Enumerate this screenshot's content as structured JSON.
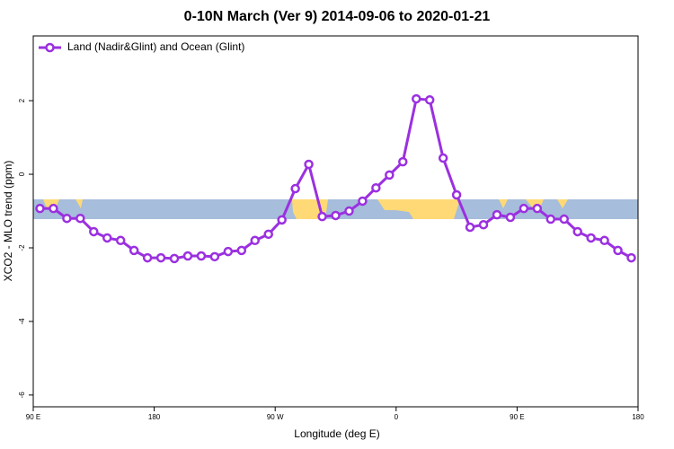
{
  "chart_data": {
    "type": "line",
    "title": "0-10N March (Ver 9)   2014-09-06 to 2020-01-21",
    "x_label": "Longitude (deg E)",
    "y_label": "XCO2 - MLO trend (ppm)",
    "xlim": [
      90,
      540
    ],
    "ylim": [
      -6.32,
      3.76
    ],
    "xticks": [
      {
        "value": 90,
        "label": "90 E"
      },
      {
        "value": 180,
        "label": "180"
      },
      {
        "value": 270,
        "label": "90 W"
      },
      {
        "value": 360,
        "label": "0"
      },
      {
        "value": 450,
        "label": "90 E"
      },
      {
        "value": 540,
        "label": "180"
      }
    ],
    "yticks": [
      2,
      0,
      -2,
      -4,
      -6
    ],
    "legend": "top-left",
    "x": [
      95,
      105,
      115,
      125,
      135,
      145,
      155,
      165,
      175,
      185,
      195,
      205,
      215,
      225,
      235,
      245,
      255,
      265,
      275,
      285,
      295,
      305,
      315,
      325,
      335,
      345,
      355,
      365,
      375,
      385,
      395,
      405,
      415,
      425,
      435,
      445,
      455,
      465,
      475,
      485,
      495,
      505,
      515,
      525,
      535
    ],
    "series": [
      {
        "name": "Land (Nadir&Glint) and Ocean (Glint)",
        "color": "#9b30e0",
        "values": [
          -0.93,
          -0.93,
          -1.2,
          -1.2,
          -1.56,
          -1.73,
          -1.8,
          -2.07,
          -2.27,
          -2.27,
          -2.29,
          -2.22,
          -2.22,
          -2.24,
          -2.1,
          -2.07,
          -1.8,
          -1.63,
          -1.24,
          -0.39,
          0.27,
          -1.15,
          -1.12,
          -1.0,
          -0.73,
          -0.37,
          -0.02,
          0.34,
          2.05,
          2.02,
          0.44,
          -0.56,
          -1.44,
          -1.37,
          -1.1,
          -1.17,
          -0.93,
          -0.93,
          -1.22,
          -1.22,
          -1.56,
          -1.73,
          -1.8,
          -2.07,
          -2.27
        ]
      }
    ]
  }
}
